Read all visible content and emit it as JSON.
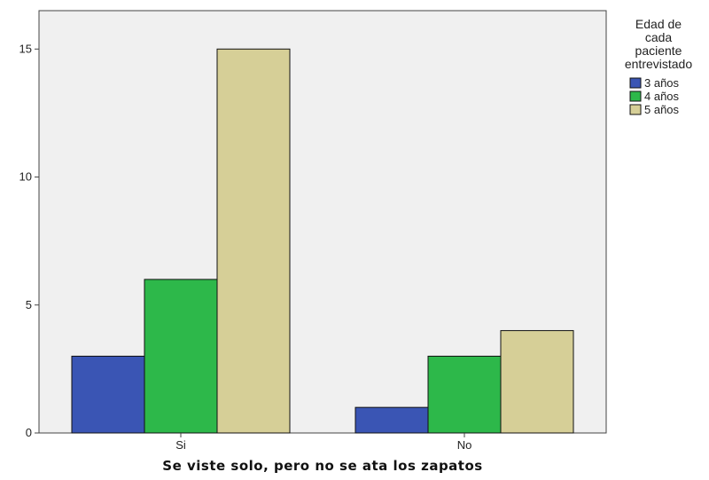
{
  "chart_data": {
    "type": "bar",
    "categories": [
      "Si",
      "No"
    ],
    "series": [
      {
        "name": "3 años",
        "values": [
          3,
          1
        ],
        "color": "#3a55b4"
      },
      {
        "name": "4 años",
        "values": [
          6,
          3
        ],
        "color": "#2db84a"
      },
      {
        "name": "5 años",
        "values": [
          15,
          4
        ],
        "color": "#d6cf97"
      }
    ],
    "xlabel": "Se viste solo, pero no se ata los zapatos",
    "ylabel": "",
    "ylim": [
      0,
      16.5
    ],
    "yticks": [
      0,
      5,
      10,
      15
    ],
    "grid": false,
    "plot_background": "#f0f0f0",
    "legend": {
      "title_lines": [
        "Edad de",
        "cada",
        "paciente",
        "entrevistado"
      ],
      "placement": "right"
    }
  }
}
